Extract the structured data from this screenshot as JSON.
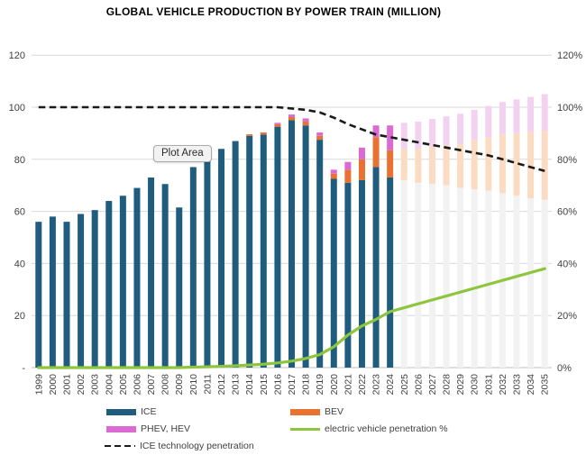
{
  "title": "GLOBAL VEHICLE PRODUCTION BY POWER TRAIN (MILLION)",
  "tooltip": {
    "label": "Plot Area"
  },
  "legend": {
    "ice": "ICE",
    "bev": "BEV",
    "phev": "PHEV, HEV",
    "ev_line": "electric vehicle penetration %",
    "ice_line": "ICE technology penetration"
  },
  "axes": {
    "tick_values": [
      0,
      20,
      40,
      60,
      80,
      100,
      120
    ],
    "left_labels": [
      "-",
      "20",
      "40",
      "60",
      "80",
      "100",
      "120"
    ],
    "right_labels": [
      "0%",
      "20%",
      "40%",
      "60%",
      "80%",
      "100%",
      "120%"
    ]
  },
  "colors": {
    "ice": "#1F5C7E",
    "bev": "#E97132",
    "phev": "#DB6BD2",
    "ice_faded": "#F2F2F2",
    "bev_faded": "#FBDCC2",
    "phev_faded": "#F3D2EF",
    "ev_line": "#8DC53C",
    "ice_line": "#1A1A1A",
    "gridline": "#D9D9D9",
    "axis_line": "#BFBFBF",
    "axis_text": "#404040"
  },
  "chart_data": {
    "type": "bar",
    "title": "GLOBAL VEHICLE PRODUCTION BY POWER TRAIN (MILLION)",
    "categories": [
      1999,
      2000,
      2001,
      2002,
      2003,
      2004,
      2005,
      2006,
      2007,
      2008,
      2009,
      2010,
      2011,
      2012,
      2013,
      2014,
      2015,
      2016,
      2017,
      2018,
      2019,
      2020,
      2021,
      2022,
      2023,
      2024,
      2025,
      2026,
      2027,
      2028,
      2029,
      2030,
      2031,
      2032,
      2033,
      2034,
      2035
    ],
    "forecast_start_year": 2025,
    "ylim_left": [
      0,
      120
    ],
    "ylim_right_percent": [
      0,
      120
    ],
    "grid": "horizontal",
    "legend_position": "bottom",
    "series": [
      {
        "name": "ICE",
        "type": "bar",
        "color": "#1F5C7E",
        "faded_color": "#F2F2F2",
        "values": [
          56,
          58,
          56,
          59,
          60.5,
          64,
          66,
          69,
          73,
          70.5,
          61.5,
          77,
          80,
          84,
          87,
          89,
          89.5,
          92.5,
          95,
          93,
          87.5,
          72.5,
          71,
          72,
          77,
          73,
          72,
          71,
          70.5,
          70,
          69,
          68.5,
          68,
          67,
          66,
          65,
          64.5
        ]
      },
      {
        "name": "BEV",
        "type": "bar",
        "color": "#E97132",
        "faded_color": "#FBDCC2",
        "values": [
          0,
          0,
          0,
          0,
          0,
          0,
          0,
          0,
          0,
          0,
          0,
          0,
          0,
          0,
          0,
          0.6,
          0.8,
          1,
          1.2,
          1.5,
          1.5,
          2,
          5,
          8,
          11.5,
          10.5,
          12,
          13,
          14.5,
          15.5,
          17,
          19,
          20.5,
          22.5,
          24,
          25.5,
          26.5
        ]
      },
      {
        "name": "PHEV, HEV",
        "type": "bar",
        "color": "#DB6BD2",
        "faded_color": "#F3D2EF",
        "values": [
          0,
          0,
          0,
          0,
          0,
          0,
          0,
          0,
          0,
          0,
          0,
          0,
          0,
          0,
          0,
          0,
          0,
          0.5,
          1,
          1.2,
          1.3,
          1.5,
          3,
          4.5,
          4.5,
          9.5,
          10,
          10.5,
          10.5,
          11,
          11.5,
          11.5,
          12,
          12.5,
          13,
          13.5,
          14
        ]
      },
      {
        "name": "electric vehicle penetration %",
        "type": "line",
        "axis": "right",
        "color": "#8DC53C",
        "values": [
          0,
          0,
          0,
          0,
          0,
          0,
          0,
          0,
          0,
          0,
          0,
          0.2,
          0.3,
          0.5,
          0.7,
          1,
          1.3,
          1.8,
          2.5,
          3.5,
          5,
          8,
          12.5,
          16,
          18.5,
          21.5,
          23,
          24.5,
          26,
          27.5,
          29,
          30.5,
          32,
          33.5,
          35,
          36.5,
          38
        ]
      },
      {
        "name": "ICE technology penetration",
        "type": "line",
        "axis": "right",
        "dashed": true,
        "color": "#1A1A1A",
        "values": [
          100,
          100,
          100,
          100,
          100,
          100,
          100,
          100,
          100,
          100,
          100,
          100,
          100,
          100,
          100,
          100,
          100,
          100,
          99.5,
          99,
          98,
          96,
          93.5,
          91.5,
          89.5,
          88.5,
          87.5,
          86.5,
          85.5,
          84.5,
          83.5,
          82.5,
          81.5,
          80,
          78.5,
          77,
          75.5
        ]
      }
    ]
  }
}
